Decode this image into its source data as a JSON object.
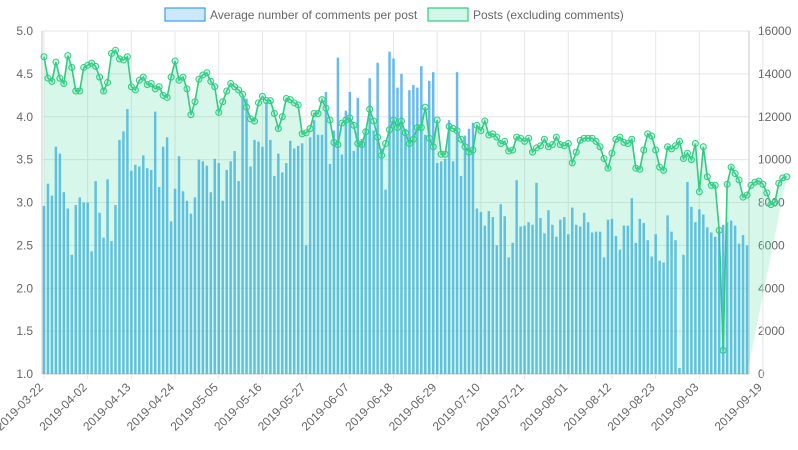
{
  "chart_data": {
    "type": "bar",
    "legend_position": "top",
    "grid": true,
    "legend": [
      {
        "label": "Average number of comments per post",
        "series": "comments_avg"
      },
      {
        "label": "Posts (excluding comments)",
        "series": "posts"
      }
    ],
    "axes": {
      "y_left": {
        "min": 1.0,
        "max": 5.0,
        "ticks": [
          "1.0",
          "1.5",
          "2.0",
          "2.5",
          "3.0",
          "3.5",
          "4.0",
          "4.5",
          "5.0"
        ]
      },
      "y_right": {
        "min": 0,
        "max": 16000,
        "ticks": [
          "0",
          "2000",
          "4000",
          "6000",
          "8000",
          "10000",
          "12000",
          "14000",
          "16000"
        ]
      },
      "x_ticks": [
        "2019-03-22",
        "2019-04-02",
        "2019-04-13",
        "2019-04-24",
        "2019-05-05",
        "2019-05-16",
        "2019-05-27",
        "2019-06-07",
        "2019-06-18",
        "2019-06-29",
        "2019-07-10",
        "2019-07-21",
        "2019-08-01",
        "2019-08-12",
        "2019-08-23",
        "2019-09-03",
        "2019-09-19"
      ]
    },
    "x_start": "2019-03-22",
    "x_end": "2019-09-21",
    "series": [
      {
        "name": "Average number of comments per post",
        "type": "bar",
        "axis": "left",
        "color": "#36a2eb",
        "values": [
          2.96,
          3.22,
          3.08,
          3.65,
          3.57,
          3.12,
          2.93,
          2.39,
          2.97,
          3.06,
          3.0,
          3.0,
          2.43,
          3.25,
          2.88,
          2.59,
          3.27,
          2.55,
          2.97,
          3.73,
          3.83,
          4.09,
          3.37,
          3.44,
          3.42,
          3.55,
          3.4,
          3.38,
          4.06,
          3.18,
          3.65,
          3.76,
          2.78,
          3.16,
          3.54,
          3.13,
          3.02,
          2.87,
          3.06,
          3.5,
          3.48,
          3.43,
          3.12,
          3.51,
          3.46,
          3.02,
          3.38,
          3.48,
          3.6,
          3.25,
          4.22,
          4.21,
          3.42,
          3.73,
          3.71,
          3.65,
          4.17,
          3.73,
          3.31,
          3.57,
          3.35,
          3.46,
          3.72,
          3.63,
          3.66,
          3.69,
          2.5,
          3.76,
          3.96,
          3.79,
          3.79,
          4.29,
          3.45,
          3.84,
          4.69,
          3.56,
          4.07,
          4.29,
          3.6,
          4.22,
          3.74,
          3.85,
          4.45,
          3.84,
          4.63,
          3.63,
          3.15,
          4.76,
          4.68,
          4.34,
          4.5,
          3.86,
          4.31,
          4.37,
          4.34,
          4.59,
          3.79,
          4.42,
          4.52,
          3.46,
          3.48,
          3.51,
          3.96,
          3.48,
          4.52,
          3.31,
          3.78,
          3.86,
          3.93,
          2.93,
          2.89,
          2.73,
          2.9,
          2.83,
          2.5,
          2.98,
          2.84,
          2.36,
          2.53,
          3.26,
          2.72,
          2.73,
          2.77,
          2.74,
          3.23,
          2.82,
          2.64,
          2.91,
          2.74,
          2.6,
          2.8,
          2.83,
          2.63,
          2.94,
          2.74,
          2.72,
          2.88,
          2.77,
          2.65,
          2.66,
          2.66,
          2.36,
          2.8,
          2.81,
          2.61,
          2.45,
          2.73,
          2.73,
          3.05,
          2.53,
          2.81,
          2.76,
          2.56,
          2.37,
          2.63,
          2.32,
          2.3,
          2.85,
          2.66,
          2.56,
          1.07,
          2.39,
          3.24,
          2.95,
          2.77,
          2.92,
          2.86,
          2.71,
          2.65,
          2.6,
          2.67,
          2.74,
          2.77,
          2.79,
          2.73,
          2.52,
          2.62,
          2.5
        ]
      },
      {
        "name": "Posts (excluding comments)",
        "type": "area",
        "axis": "right",
        "color": "#4bc0a0",
        "values": [
          14800,
          13800,
          13650,
          14550,
          13800,
          13550,
          14850,
          14300,
          13200,
          13200,
          14300,
          14400,
          14500,
          14350,
          13850,
          13200,
          13600,
          14950,
          15100,
          14700,
          14650,
          14800,
          13400,
          13250,
          13700,
          13850,
          13500,
          13550,
          13300,
          13400,
          13000,
          12900,
          13850,
          14600,
          13700,
          13850,
          13300,
          12100,
          12700,
          13750,
          13950,
          14050,
          13650,
          13400,
          12200,
          12700,
          13200,
          13550,
          13400,
          13250,
          13050,
          12450,
          11900,
          11800,
          12650,
          12950,
          12750,
          12750,
          12150,
          11450,
          12000,
          12850,
          12800,
          12650,
          12550,
          11200,
          11250,
          11450,
          12150,
          12150,
          12800,
          12400,
          11850,
          10800,
          10700,
          11700,
          11850,
          11950,
          11600,
          10750,
          10700,
          11300,
          12350,
          11800,
          11050,
          10200,
          10750,
          11400,
          11850,
          11500,
          11800,
          11250,
          10750,
          10950,
          11500,
          11500,
          12450,
          11000,
          10600,
          11850,
          10250,
          10250,
          11550,
          11450,
          11350,
          10950,
          10600,
          10350,
          10450,
          11600,
          11350,
          11800,
          11150,
          11200,
          11050,
          10750,
          10850,
          10400,
          10450,
          11050,
          11000,
          10850,
          11000,
          10350,
          10550,
          10650,
          10950,
          10600,
          10700,
          11050,
          10700,
          10650,
          10750,
          9850,
          10350,
          10900,
          11000,
          11000,
          11000,
          10850,
          10600,
          10050,
          9600,
          10300,
          10950,
          11050,
          10800,
          10750,
          10950,
          9600,
          9550,
          10450,
          11200,
          11100,
          10450,
          9650,
          9500,
          10600,
          10500,
          10650,
          10850,
          10050,
          10300,
          10000,
          10750,
          8500,
          10600,
          9200,
          8800,
          8800,
          6700,
          1100,
          8850,
          9650,
          9350,
          9050,
          8250,
          8350,
          8800,
          8950,
          9000,
          8850,
          8450,
          7900,
          8000,
          8900,
          9150,
          9200
        ]
      }
    ]
  }
}
